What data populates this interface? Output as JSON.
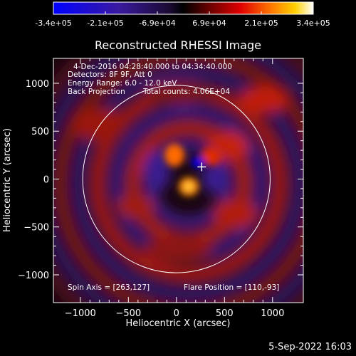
{
  "colorbar": {
    "tick_labels": [
      "-3.4e+05",
      "-2.1e+05",
      "-6.9e+04",
      "6.9e+04",
      "2.1e+05",
      "3.4e+05"
    ],
    "range": [
      -340000,
      340000
    ]
  },
  "info": {
    "time_range": "4-Dec-2016 04:28:40.000 to 04:34:40.000",
    "detectors": "Detectors: 8F 9F, Att 0",
    "energy": "Energy Range: 6.0 - 12.0 keV",
    "method": "Back Projection",
    "counts": "Total counts: 4.06E+04",
    "spin_axis": "Spin Axis = [263,127]",
    "flare_position": "Flare Position = [110,-93]"
  },
  "timestamp": "5-Sep-2022 16:03",
  "chart_data": {
    "type": "heatmap",
    "title": "Reconstructed RHESSI Image",
    "xlabel": "Heliocentric X (arcsec)",
    "ylabel": "Heliocentric Y (arcsec)",
    "xlim": [
      -1280,
      1320
    ],
    "ylim": [
      -1290,
      1260
    ],
    "xticks": [
      -1000,
      -500,
      0,
      500,
      1000
    ],
    "xtick_labels": [
      "−1000",
      "−500",
      "0",
      "500",
      "1000"
    ],
    "yticks": [
      -1000,
      -500,
      0,
      500,
      1000
    ],
    "ytick_labels": [
      "−1000",
      "−500",
      "0",
      "500",
      "1000"
    ],
    "solar_limb": {
      "center": [
        0,
        0
      ],
      "radius": 975,
      "color": "#ffffff"
    },
    "spin_axis_marker": {
      "x": 263,
      "y": 127,
      "color": "#ffffff"
    },
    "flare_position": {
      "x": 110,
      "y": -93
    },
    "value_range": [
      -340000,
      340000
    ]
  }
}
